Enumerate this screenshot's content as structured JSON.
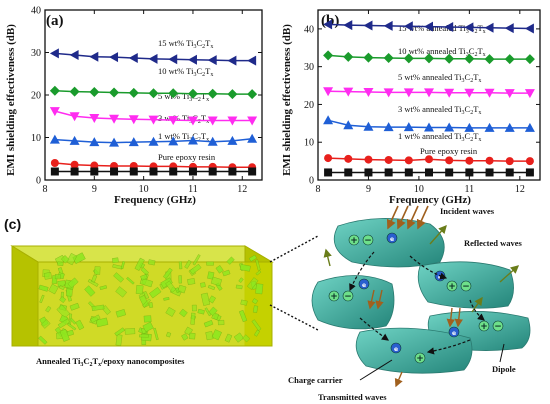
{
  "chart_data": [
    {
      "type": "line",
      "panel": "(a)",
      "xlabel": "Frequency (GHz)",
      "ylabel": "EMI shielding effectiveness (dB)",
      "xlim": [
        8,
        12.4
      ],
      "ylim": [
        0,
        40
      ],
      "xticks": [
        8,
        9,
        10,
        11,
        12
      ],
      "yticks": [
        0,
        10,
        20,
        30,
        40
      ],
      "x": [
        8.2,
        8.6,
        9.0,
        9.4,
        9.8,
        10.2,
        10.6,
        11.0,
        11.4,
        11.8,
        12.2
      ],
      "series": [
        {
          "name": "15 wt% Ti3C2Tx",
          "marker": "tri-left",
          "color": "#1f2a8a",
          "values": [
            29.8,
            29.4,
            29.0,
            28.9,
            28.7,
            28.5,
            28.4,
            28.3,
            28.2,
            28.1,
            28.1
          ]
        },
        {
          "name": "10 wt% Ti3C2Tx",
          "marker": "diamond",
          "color": "#1a9b2c",
          "values": [
            21.0,
            20.8,
            20.7,
            20.6,
            20.5,
            20.4,
            20.4,
            20.3,
            20.3,
            20.2,
            20.2
          ]
        },
        {
          "name": "5 wt% Ti3C2Tx",
          "marker": "tri-down",
          "color": "#ff2cf0",
          "values": [
            16.2,
            15.0,
            14.6,
            14.4,
            14.3,
            14.2,
            14.1,
            14.0,
            14.0,
            14.0,
            14.0
          ]
        },
        {
          "name": "3 wt% Ti3C2Tx",
          "marker": "tri-up",
          "color": "#1f5fd6",
          "values": [
            9.5,
            9.2,
            8.9,
            8.8,
            8.9,
            9.0,
            9.1,
            9.3,
            9.0,
            9.2,
            9.7
          ]
        },
        {
          "name": "1 wt% Ti3C2Tx",
          "marker": "circle",
          "color": "#e8201c",
          "values": [
            4.0,
            3.6,
            3.4,
            3.3,
            3.3,
            3.2,
            3.2,
            3.1,
            3.1,
            3.0,
            3.0
          ]
        },
        {
          "name": "Pure epoxy resin",
          "marker": "square",
          "color": "#111111",
          "values": [
            2.0,
            2.0,
            2.0,
            2.0,
            2.0,
            2.0,
            2.0,
            2.0,
            2.0,
            2.0,
            2.0
          ]
        }
      ]
    },
    {
      "type": "line",
      "panel": "(b)",
      "xlabel": "Frequency (GHz)",
      "ylabel": "EMI shielding effectiveness (dB)",
      "xlim": [
        8,
        12.4
      ],
      "ylim": [
        0,
        45
      ],
      "xticks": [
        8,
        9,
        10,
        11,
        12
      ],
      "yticks": [
        0,
        10,
        20,
        30,
        40
      ],
      "x": [
        8.2,
        8.6,
        9.0,
        9.4,
        9.8,
        10.2,
        10.6,
        11.0,
        11.4,
        11.8,
        12.2
      ],
      "series": [
        {
          "name": "15 wt% annealed Ti3C2Tx",
          "marker": "tri-left",
          "color": "#1f2a8a",
          "values": [
            41.2,
            41.0,
            40.9,
            40.8,
            40.7,
            40.6,
            40.5,
            40.4,
            40.3,
            40.2,
            40.1
          ]
        },
        {
          "name": "10 wt% annealed Ti3C2Tx",
          "marker": "diamond",
          "color": "#1a9b2c",
          "values": [
            33.0,
            32.6,
            32.4,
            32.3,
            32.2,
            32.2,
            32.1,
            32.1,
            32.0,
            32.0,
            32.0
          ]
        },
        {
          "name": "5 wt% annealed Ti3C2Tx",
          "marker": "tri-down",
          "color": "#ff2cf0",
          "values": [
            23.5,
            23.4,
            23.3,
            23.2,
            23.2,
            23.2,
            23.1,
            23.1,
            23.1,
            23.0,
            23.0
          ]
        },
        {
          "name": "3 wt% annealed Ti3C2Tx",
          "marker": "tri-up",
          "color": "#1f5fd6",
          "values": [
            15.8,
            14.5,
            14.1,
            14.0,
            14.0,
            13.9,
            13.9,
            13.8,
            13.8,
            13.8,
            13.8
          ]
        },
        {
          "name": "1 wt% annealed Ti3C2Tx",
          "marker": "circle",
          "color": "#e8201c",
          "values": [
            5.8,
            5.6,
            5.4,
            5.3,
            5.2,
            5.5,
            5.2,
            5.1,
            5.1,
            5.0,
            5.0
          ]
        },
        {
          "name": "Pure epoxy resin",
          "marker": "square",
          "color": "#111111",
          "values": [
            2.0,
            2.0,
            2.0,
            2.0,
            2.0,
            2.0,
            2.0,
            2.0,
            2.0,
            2.0,
            2.0
          ]
        }
      ]
    }
  ],
  "panel_a": {
    "tag": "(a)",
    "labels": {
      "s15": {
        "pre": "15 wt% Ti",
        "sub1": "3",
        "mid": "C",
        "sub2": "2",
        "post": "T",
        "sub3": "x"
      },
      "s10": {
        "pre": "10 wt% Ti",
        "sub1": "3",
        "mid": "C",
        "sub2": "2",
        "post": "T",
        "sub3": "x"
      },
      "s5": {
        "pre": "5 wt% Ti",
        "sub1": "3",
        "mid": "C",
        "sub2": "2",
        "post": "T",
        "sub3": "x"
      },
      "s3": {
        "pre": "3 wt% Ti",
        "sub1": "3",
        "mid": "C",
        "sub2": "2",
        "post": "T",
        "sub3": "x"
      },
      "s1": {
        "pre": "1 wt% Ti",
        "sub1": "3",
        "mid": "C",
        "sub2": "2",
        "post": "T",
        "sub3": "x"
      },
      "s0": "Pure epoxy resin"
    }
  },
  "panel_b": {
    "tag": "(b)",
    "labels": {
      "s15": {
        "pre": "15 wt% annealed Ti",
        "sub1": "3",
        "mid": "C",
        "sub2": "2",
        "post": "T",
        "sub3": "x"
      },
      "s10": {
        "pre": "10 wt% annealed Ti",
        "sub1": "3",
        "mid": "C",
        "sub2": "2",
        "post": "T",
        "sub3": "x"
      },
      "s5": {
        "pre": "5 wt% annealed Ti",
        "sub1": "3",
        "mid": "C",
        "sub2": "2",
        "post": "T",
        "sub3": "x"
      },
      "s3": {
        "pre": "3 wt% annealed Ti",
        "sub1": "3",
        "mid": "C",
        "sub2": "2",
        "post": "T",
        "sub3": "x"
      },
      "s1": {
        "pre": "1 wt% annealed Ti",
        "sub1": "3",
        "mid": "C",
        "sub2": "2",
        "post": "T",
        "sub3": "x"
      },
      "s0": "Pure epoxy resin"
    }
  },
  "panel_c": {
    "tag": "(c)",
    "box_caption": {
      "pre": "Annealed  Ti",
      "sub1": "3",
      "mid": "C",
      "sub2": "2",
      "post": "T",
      "sub3": "x",
      "tail": "/epoxy nanocomposites"
    },
    "labels": {
      "incident": "Incident waves",
      "reflected": "Reflected waves",
      "charge": "Charge carrier",
      "dipole": "Dipole",
      "transmitted": "Transmitted waves"
    },
    "colors": {
      "box": "#c8d400",
      "flakes": "#8fe61f",
      "sheet": "#3fb5a6",
      "incident_arrow": "#a0601e",
      "reflected_arrow": "#6a7d1a"
    }
  }
}
